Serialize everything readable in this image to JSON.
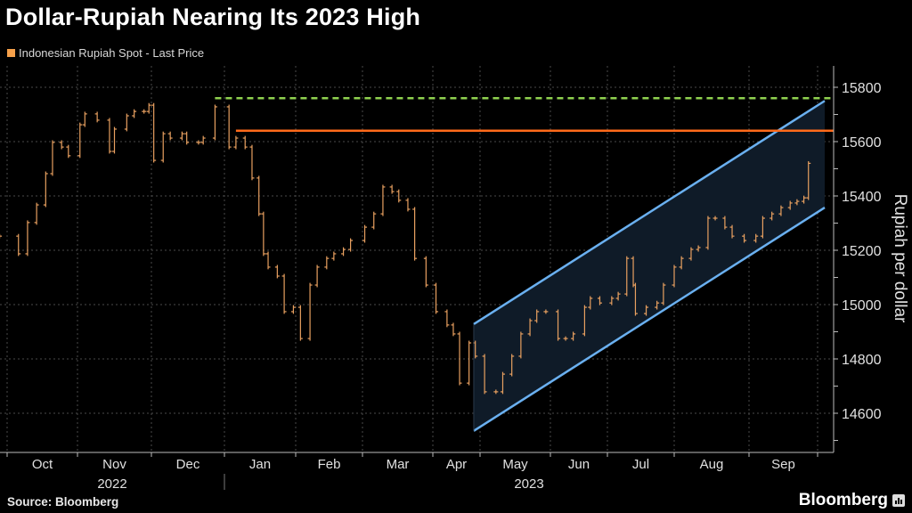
{
  "chart_data": {
    "type": "ohlc-bar",
    "title": "Dollar-Rupiah Nearing Its 2023 High",
    "legend": [
      {
        "name": "Indonesian Rupiah Spot - Last Price",
        "color": "#f5a04a"
      }
    ],
    "legend_placement": "top-left",
    "ylabel": "Rupiah per dollar",
    "ylim": [
      14500,
      15880
    ],
    "yticks": [
      14600,
      14800,
      15000,
      15200,
      15400,
      15600,
      15800
    ],
    "y_axis_side": "right",
    "grid": true,
    "xlim": [
      "2022-09-26",
      "2023-10-04"
    ],
    "month_labels": [
      "Oct",
      "Nov",
      "Dec",
      "Jan",
      "Feb",
      "Mar",
      "Apr",
      "May",
      "Jun",
      "Jul",
      "Aug",
      "Sep"
    ],
    "year_labels": [
      "2022",
      "2023"
    ],
    "series_color": "#e8a060",
    "bars": [
      [
        "2022-09-28",
        15252
      ],
      [
        "2022-10-06",
        15187
      ],
      [
        "2022-10-10",
        15302
      ],
      [
        "2022-10-14",
        15367
      ],
      [
        "2022-10-18",
        15482
      ],
      [
        "2022-10-21",
        15597
      ],
      [
        "2022-10-25",
        15580
      ],
      [
        "2022-10-28",
        15548
      ],
      [
        "2022-11-02",
        15662
      ],
      [
        "2022-11-04",
        15702
      ],
      [
        "2022-11-09",
        15679
      ],
      [
        "2022-11-14",
        15564
      ],
      [
        "2022-11-16",
        15646
      ],
      [
        "2022-11-21",
        15695
      ],
      [
        "2022-11-24",
        15711
      ],
      [
        "2022-11-28",
        15711
      ],
      [
        "2022-11-30",
        15734
      ],
      [
        "2022-12-02",
        15531
      ],
      [
        "2022-12-06",
        15629
      ],
      [
        "2022-12-09",
        15613
      ],
      [
        "2022-12-14",
        15629
      ],
      [
        "2022-12-16",
        15597
      ],
      [
        "2022-12-21",
        15597
      ],
      [
        "2022-12-23",
        15613
      ],
      [
        "2022-12-28",
        15728
      ],
      [
        "2023-01-03",
        15580
      ],
      [
        "2023-01-06",
        15613
      ],
      [
        "2023-01-10",
        15580
      ],
      [
        "2023-01-13",
        15466
      ],
      [
        "2023-01-16",
        15334
      ],
      [
        "2023-01-18",
        15187
      ],
      [
        "2023-01-20",
        15138
      ],
      [
        "2023-01-24",
        15105
      ],
      [
        "2023-01-27",
        14974
      ],
      [
        "2023-01-31",
        14990
      ],
      [
        "2023-02-03",
        14875
      ],
      [
        "2023-02-07",
        15072
      ],
      [
        "2023-02-10",
        15138
      ],
      [
        "2023-02-14",
        15170
      ],
      [
        "2023-02-17",
        15187
      ],
      [
        "2023-02-21",
        15203
      ],
      [
        "2023-02-24",
        15236
      ],
      [
        "2023-03-02",
        15285
      ],
      [
        "2023-03-06",
        15334
      ],
      [
        "2023-03-10",
        15433
      ],
      [
        "2023-03-14",
        15416
      ],
      [
        "2023-03-17",
        15384
      ],
      [
        "2023-03-21",
        15351
      ],
      [
        "2023-03-24",
        15170
      ],
      [
        "2023-03-29",
        15072
      ],
      [
        "2023-04-03",
        14974
      ],
      [
        "2023-04-10",
        14925
      ],
      [
        "2023-04-14",
        14892
      ],
      [
        "2023-04-18",
        14711
      ],
      [
        "2023-04-24",
        14859
      ],
      [
        "2023-04-28",
        14810
      ],
      [
        "2023-05-03",
        14679
      ],
      [
        "2023-05-08",
        14679
      ],
      [
        "2023-05-11",
        14744
      ],
      [
        "2023-05-15",
        14810
      ],
      [
        "2023-05-19",
        14892
      ],
      [
        "2023-05-23",
        14941
      ],
      [
        "2023-05-26",
        14974
      ],
      [
        "2023-05-30",
        14974
      ],
      [
        "2023-06-05",
        14875
      ],
      [
        "2023-06-09",
        14875
      ],
      [
        "2023-06-13",
        14892
      ],
      [
        "2023-06-19",
        14990
      ],
      [
        "2023-06-22",
        15023
      ],
      [
        "2023-06-27",
        15006
      ],
      [
        "2023-07-03",
        15023
      ],
      [
        "2023-07-06",
        15039
      ],
      [
        "2023-07-10",
        15170
      ],
      [
        "2023-07-13",
        15072
      ],
      [
        "2023-07-14",
        14967
      ],
      [
        "2023-07-19",
        14990
      ],
      [
        "2023-07-24",
        15006
      ],
      [
        "2023-07-27",
        15072
      ],
      [
        "2023-08-01",
        15138
      ],
      [
        "2023-08-04",
        15170
      ],
      [
        "2023-08-08",
        15203
      ],
      [
        "2023-08-11",
        15210
      ],
      [
        "2023-08-15",
        15318
      ],
      [
        "2023-08-18",
        15318
      ],
      [
        "2023-08-22",
        15285
      ],
      [
        "2023-08-25",
        15252
      ],
      [
        "2023-08-30",
        15236
      ],
      [
        "2023-09-04",
        15252
      ],
      [
        "2023-09-07",
        15318
      ],
      [
        "2023-09-11",
        15334
      ],
      [
        "2023-09-15",
        15357
      ],
      [
        "2023-09-19",
        15374
      ],
      [
        "2023-09-22",
        15380
      ],
      [
        "2023-09-25",
        15393
      ],
      [
        "2023-09-27",
        15520
      ]
    ],
    "reference_lines": [
      {
        "kind": "dashed-horizontal",
        "value": 15760,
        "from": "2022-12-28",
        "color": "#8fd14f"
      },
      {
        "kind": "solid-horizontal",
        "value": 15640,
        "from": "2023-01-06",
        "color": "#ff6a1a"
      }
    ],
    "channel": {
      "from": "2023-04-27",
      "to": "2023-10-04",
      "upper": [
        14928,
        15750
      ],
      "lower": [
        14535,
        15357
      ],
      "line_color": "#6ab0f0",
      "fill_color": "#0f1b28"
    }
  },
  "footer": {
    "source": "Source: Bloomberg",
    "brand": "Bloomberg"
  }
}
